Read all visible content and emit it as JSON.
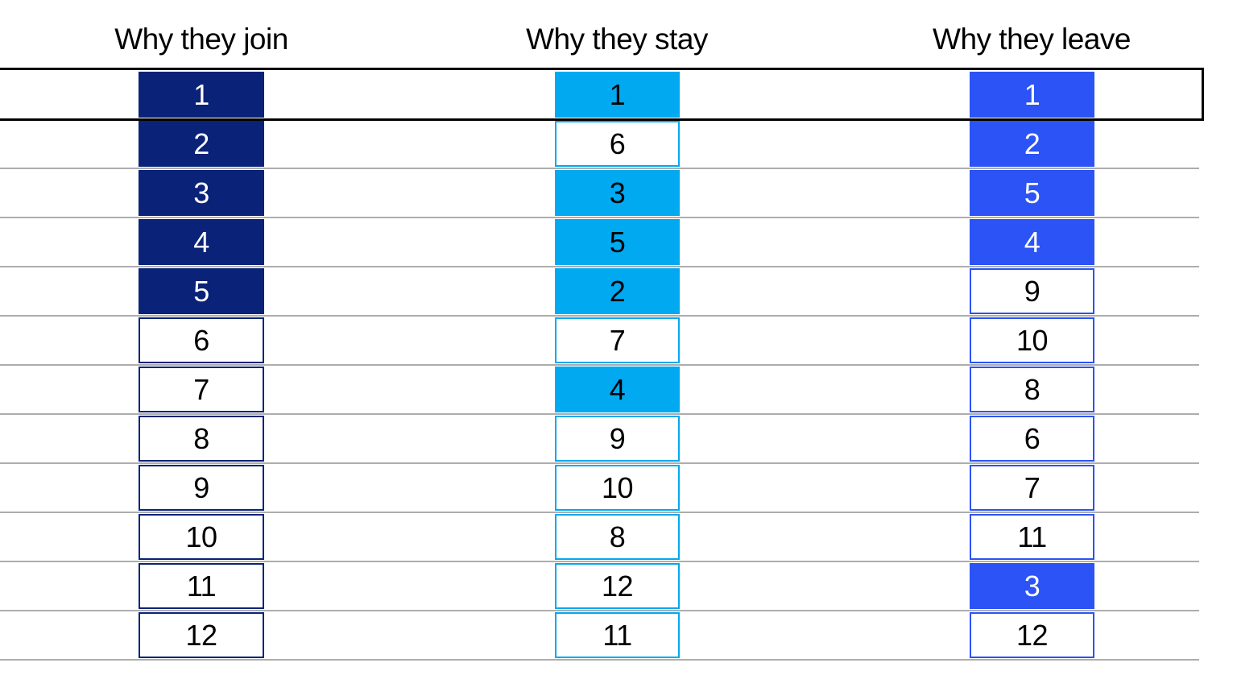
{
  "chart_data": {
    "type": "table",
    "title": "",
    "legend_position": "none",
    "grid": true,
    "grid_color": "#ADADAD",
    "highlight_row": 1,
    "highlight_border_color": "#000000",
    "columns": [
      {
        "header": "Why they join",
        "accent": "#0A2278",
        "filled_text_color": "#FFFFFF",
        "outline_text_color": "#000000",
        "ranking": [
          {
            "value": 1,
            "filled": true
          },
          {
            "value": 2,
            "filled": true
          },
          {
            "value": 3,
            "filled": true
          },
          {
            "value": 4,
            "filled": true
          },
          {
            "value": 5,
            "filled": true
          },
          {
            "value": 6,
            "filled": false
          },
          {
            "value": 7,
            "filled": false
          },
          {
            "value": 8,
            "filled": false
          },
          {
            "value": 9,
            "filled": false
          },
          {
            "value": 10,
            "filled": false
          },
          {
            "value": 11,
            "filled": false
          },
          {
            "value": 12,
            "filled": false
          }
        ]
      },
      {
        "header": "Why they stay",
        "accent": "#00A9F0",
        "filled_text_color": "#000000",
        "outline_text_color": "#000000",
        "ranking": [
          {
            "value": 1,
            "filled": true
          },
          {
            "value": 6,
            "filled": false
          },
          {
            "value": 3,
            "filled": true
          },
          {
            "value": 5,
            "filled": true
          },
          {
            "value": 2,
            "filled": true
          },
          {
            "value": 7,
            "filled": false
          },
          {
            "value": 4,
            "filled": true
          },
          {
            "value": 9,
            "filled": false
          },
          {
            "value": 10,
            "filled": false
          },
          {
            "value": 8,
            "filled": false
          },
          {
            "value": 12,
            "filled": false
          },
          {
            "value": 11,
            "filled": false
          }
        ]
      },
      {
        "header": "Why they leave",
        "accent": "#2B53F5",
        "filled_text_color": "#FFFFFF",
        "outline_text_color": "#000000",
        "ranking": [
          {
            "value": 1,
            "filled": true
          },
          {
            "value": 2,
            "filled": true
          },
          {
            "value": 5,
            "filled": true
          },
          {
            "value": 4,
            "filled": true
          },
          {
            "value": 9,
            "filled": false
          },
          {
            "value": 10,
            "filled": false
          },
          {
            "value": 8,
            "filled": false
          },
          {
            "value": 6,
            "filled": false
          },
          {
            "value": 7,
            "filled": false
          },
          {
            "value": 11,
            "filled": false
          },
          {
            "value": 3,
            "filled": true
          },
          {
            "value": 12,
            "filled": false
          }
        ]
      }
    ]
  }
}
